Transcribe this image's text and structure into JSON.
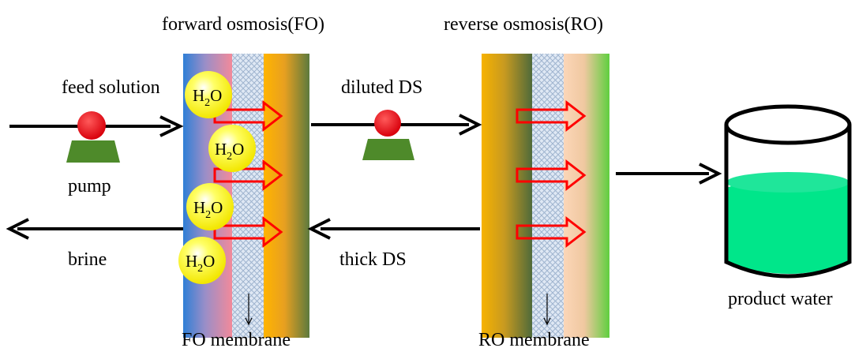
{
  "labels": {
    "fo_title": "forward osmosis(FO)",
    "ro_title": "reverse osmosis(RO)",
    "feed_solution": "feed solution",
    "pump": "pump",
    "brine": "brine",
    "diluted_ds": "diluted DS",
    "thick_ds": "thick DS",
    "product_water": "product water",
    "fo_membrane": "FO membrane",
    "ro_membrane": "RO membrane"
  },
  "water_molecule": {
    "main": "H",
    "sub": "2",
    "tail": "O"
  },
  "colors": {
    "pump_ball": "#e3000f",
    "pump_base": "#4e8a2a",
    "flux_arrow": "#ff0000",
    "h2o_ball": "#ffff00",
    "product_water": "#00e68a",
    "feed_side_blue": "#2f7fd6",
    "feed_side_pink": "#f28a9a",
    "draw_side_orange": "#f7b200",
    "ro_permeate_green": "#5fcf3f"
  },
  "icons": {
    "pump": "pump-icon",
    "water_molecule": "water-molecule-icon",
    "tank": "tank-icon"
  }
}
